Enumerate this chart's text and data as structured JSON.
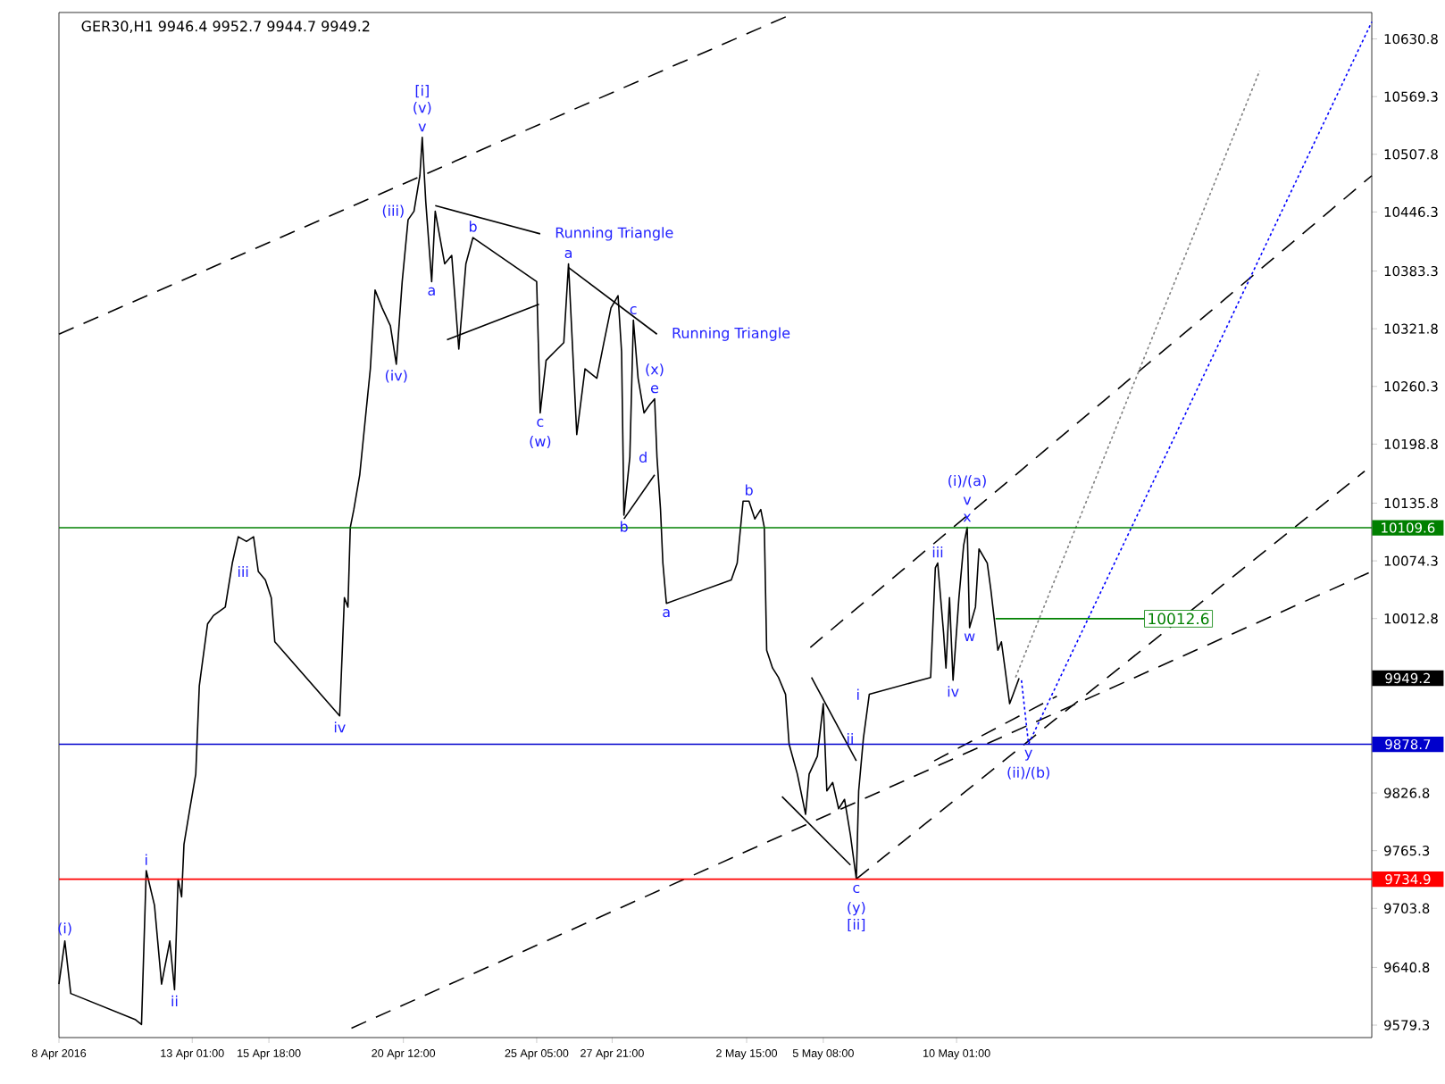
{
  "chart_data": {
    "type": "line",
    "title": "GER30,H1  9946.4 9952.7 9944.7 9949.2",
    "x": [
      "2016-04-08T08:00",
      "2016-04-08T13:00",
      "2016-04-08T18:00",
      "2016-04-11T01:00",
      "2016-04-11T06:00",
      "2016-04-11T10:00",
      "2016-04-11T17:00",
      "2016-04-11T23:00",
      "2016-04-12T06:00",
      "2016-04-12T10:00",
      "2016-04-12T13:00",
      "2016-04-12T16:00",
      "2016-04-12T18:00",
      "2016-04-12T23:00",
      "2016-04-13T04:00",
      "2016-04-13T07:00",
      "2016-04-13T09:00",
      "2016-04-13T14:00",
      "2016-04-13T19:00",
      "2016-04-14T05:00",
      "2016-04-14T11:00",
      "2016-04-14T16:00",
      "2016-04-14T23:00",
      "2016-04-15T05:00",
      "2016-04-15T09:00",
      "2016-04-15T15:00",
      "2016-04-15T20:00",
      "2016-04-15T23:00",
      "2016-04-18T06:00",
      "2016-04-18T10:00",
      "2016-04-18T13:00",
      "2016-04-18T15:00",
      "2016-04-18T18:00",
      "2016-04-18T23:00",
      "2016-04-19T08:00",
      "2016-04-19T12:00",
      "2016-04-19T18:00",
      "2016-04-20T01:00",
      "2016-04-20T06:00",
      "2016-04-20T11:00",
      "2016-04-20T16:00",
      "2016-04-20T21:00",
      "2016-04-21T02:00",
      "2016-04-21T04:00",
      "2016-04-21T07:00",
      "2016-04-21T12:00",
      "2016-04-21T15:00",
      "2016-04-21T23:00",
      "2016-04-22T05:00",
      "2016-04-22T11:00",
      "2016-04-22T17:00",
      "2016-04-22T23:00",
      "2016-04-25T05:00",
      "2016-04-25T08:00",
      "2016-04-25T13:00",
      "2016-04-25T20:00",
      "2016-04-26T04:00",
      "2016-04-26T08:00",
      "2016-04-26T15:00",
      "2016-04-26T22:00",
      "2016-04-27T08:00",
      "2016-04-27T14:00",
      "2016-04-27T20:00",
      "2016-04-28T02:00",
      "2016-04-28T05:00",
      "2016-04-28T07:00",
      "2016-04-28T12:00",
      "2016-04-28T15:00",
      "2016-04-28T19:00",
      "2016-04-29T00:00",
      "2016-04-29T05:00",
      "2016-04-29T09:00",
      "2016-04-29T11:00",
      "2016-04-29T14:00",
      "2016-04-29T16:00",
      "2016-04-29T19:00",
      "2016-05-02T02:00",
      "2016-05-02T07:00",
      "2016-05-02T12:00",
      "2016-05-02T17:00",
      "2016-05-02T22:00",
      "2016-05-03T03:00",
      "2016-05-03T06:00",
      "2016-05-03T08:00",
      "2016-05-03T13:00",
      "2016-05-03T18:00",
      "2016-05-04T00:00",
      "2016-05-04T03:00",
      "2016-05-04T10:00",
      "2016-05-04T17:00",
      "2016-05-04T20:00",
      "2016-05-05T03:00",
      "2016-05-05T08:00",
      "2016-05-05T11:00",
      "2016-05-05T16:00",
      "2016-05-05T21:00",
      "2016-05-06T02:00",
      "2016-05-06T07:00",
      "2016-05-06T12:00",
      "2016-05-06T14:00",
      "2016-05-06T18:00",
      "2016-05-06T23:00",
      "2016-05-09T03:00",
      "2016-05-09T07:00",
      "2016-05-09T09:00",
      "2016-05-09T14:00",
      "2016-05-09T16:00",
      "2016-05-09T19:00",
      "2016-05-09T22:00",
      "2016-05-10T03:00",
      "2016-05-10T07:00",
      "2016-05-10T10:00",
      "2016-05-10T12:00",
      "2016-05-10T17:00",
      "2016-05-10T20:00",
      "2016-05-11T03:00",
      "2016-05-11T06:00",
      "2016-05-11T12:00",
      "2016-05-11T15:00",
      "2016-05-11T18:00",
      "2016-05-11T22:00",
      "2016-05-12T01:00",
      "2016-05-12T06:00"
    ],
    "series": [
      {
        "color": "#000000",
        "values": [
          9623,
          9669,
          9613,
          9585,
          9580,
          9744,
          9707,
          9623,
          9669,
          9617,
          9735,
          9716,
          9772,
          9810,
          9847,
          9941,
          9960,
          10007,
          10016,
          10025,
          10072,
          10100,
          10095,
          10100,
          10063,
          10054,
          10035,
          9988,
          9909,
          10035,
          10025,
          10110,
          10129,
          10166,
          10279,
          10363,
          10344,
          10325,
          10284,
          10372,
          10438,
          10447,
          10485,
          10526,
          10457,
          10372,
          10447,
          10391,
          10400,
          10300,
          10391,
          10419,
          10372,
          10232,
          10288,
          10297,
          10307,
          10391,
          10209,
          10279,
          10269,
          10307,
          10344,
          10357,
          10297,
          10123,
          10185,
          10331,
          10269,
          10232,
          10241,
          10247,
          10185,
          10129,
          10072,
          10029,
          10054,
          10072,
          10138,
          10138,
          10119,
          10129,
          10110,
          9979,
          9960,
          9950,
          9932,
          9879,
          9847,
          9804,
          9847,
          9866,
          9922,
          9829,
          9838,
          9810,
          9820,
          9782,
          9735,
          9829,
          9885,
          9932,
          9950,
          10067,
          10072,
          9997,
          9960,
          10035,
          9947,
          10035,
          10091,
          10110,
          10003,
          10025,
          10087,
          10072,
          10044,
          9979,
          9988,
          9960,
          9922,
          9932,
          9949.2
        ]
      },
      {
        "color": "#000000",
        "line_style": "dashed",
        "x": [
          "2016-04-08T08:00",
          "2016-05-04T05:00"
        ],
        "values": [
          10316,
          10657
        ]
      },
      {
        "color": "#000000",
        "line_style": "dashed",
        "x": [
          "2016-04-18T16:00",
          "2016-05-24T17:00"
        ],
        "values": [
          9576,
          10063
        ]
      },
      {
        "color": "#000000",
        "line_style": "dashed",
        "x": [
          "2016-05-04T21:00",
          "2016-05-24T17:00"
        ],
        "values": [
          9982,
          10485
        ]
      },
      {
        "color": "#000000",
        "line_style": "dashed",
        "x": [
          "2016-05-06T12:00",
          "2016-05-24T11:00"
        ],
        "values": [
          9735,
          10170
        ]
      },
      {
        "color": "#000000",
        "line_style": "dashed",
        "x": [
          "2016-05-09T06:00",
          "2016-05-13T14:00"
        ],
        "values": [
          9861,
          9930
        ]
      },
      {
        "color": "#808080",
        "line_style": "dotted",
        "x": [
          "2016-05-12T03:00",
          "2016-05-20T18:00"
        ],
        "values": [
          9950,
          10597
        ]
      },
      {
        "color": "#0000ff",
        "line_style": "dotted",
        "x": [
          "2016-05-12T08:00",
          "2016-05-12T14:00",
          "2016-05-24T17:00"
        ],
        "values": [
          9947,
          9879,
          10649
        ]
      },
      {
        "color": "#000000",
        "x": [
          "2016-04-21T15:00",
          "2016-04-25T08:00"
        ],
        "values": [
          10453,
          10423
        ]
      },
      {
        "color": "#000000",
        "x": [
          "2016-04-22T01:00",
          "2016-04-25T07:00"
        ],
        "values": [
          10310,
          10348
        ]
      },
      {
        "color": "#000000",
        "x": [
          "2016-04-26T08:00",
          "2016-04-29T11:00"
        ],
        "values": [
          10387,
          10316
        ]
      },
      {
        "color": "#000000",
        "x": [
          "2016-04-28T07:00",
          "2016-04-29T09:00"
        ],
        "values": [
          10119,
          10166
        ]
      },
      {
        "color": "#000000",
        "x": [
          "2016-05-04T22:00",
          "2016-05-06T12:00"
        ],
        "values": [
          9950,
          9861
        ]
      },
      {
        "color": "#000000",
        "x": [
          "2016-05-03T21:00",
          "2016-05-06T07:00"
        ],
        "values": [
          9823,
          9750
        ]
      },
      {
        "color": "#008000",
        "x": [
          "2016-05-11T10:00",
          "2016-05-16T16:00"
        ],
        "values": [
          10012.6,
          10012.6
        ],
        "value_labels": [
          null,
          "10012.6"
        ]
      }
    ],
    "xlim": [
      "2016-04-08T08:00",
      "2016-05-24T17:00"
    ],
    "ylim": [
      9566,
      10659
    ],
    "xticks": [
      {
        "value": "2016-04-08T08:00",
        "label": "8 Apr 2016"
      },
      {
        "value": "2016-04-13T01:00",
        "label": "13 Apr 01:00"
      },
      {
        "value": "2016-04-15T18:00",
        "label": "15 Apr 18:00"
      },
      {
        "value": "2016-04-20T12:00",
        "label": "20 Apr 12:00"
      },
      {
        "value": "2016-04-25T05:00",
        "label": "25 Apr 05:00"
      },
      {
        "value": "2016-04-27T21:00",
        "label": "27 Apr 21:00"
      },
      {
        "value": "2016-05-02T15:00",
        "label": "2 May 15:00"
      },
      {
        "value": "2016-05-05T08:00",
        "label": "5 May 08:00"
      },
      {
        "value": "2016-05-10T01:00",
        "label": "10 May 01:00"
      }
    ],
    "yticks": [
      10630.8,
      10569.3,
      10507.8,
      10446.3,
      10383.3,
      10321.8,
      10260.3,
      10198.8,
      10135.8,
      10074.3,
      10012.8,
      9826.8,
      9765.3,
      9703.8,
      9640.8,
      9579.3
    ],
    "ref_lines": [
      {
        "axis": "y",
        "value": 10109.6,
        "label": "10109.6",
        "color": "#008000"
      },
      {
        "axis": "y",
        "value": 9878.7,
        "label": "9878.7",
        "color": "#0000cc"
      },
      {
        "axis": "y",
        "value": 9734.9,
        "label": "9734.9",
        "color": "#ff0000"
      }
    ],
    "annotations": [
      "9949.2",
      {
        "text": "v",
        "x": "2016-04-21T04:00",
        "y": 10526
      },
      {
        "text": "(v)",
        "x": "2016-04-21T04:00",
        "y": 10526
      },
      {
        "text": "[i]",
        "x": "2016-04-21T04:00",
        "y": 10526
      },
      {
        "text": "(iii)",
        "x": "2016-04-20T21:00",
        "y": 10447
      },
      {
        "text": "b",
        "x": "2016-04-22T23:00",
        "y": 10419
      },
      {
        "text": "Running Triangle",
        "x": "2016-04-25T08:00",
        "y": 10423
      },
      {
        "text": "a",
        "x": "2016-04-26T08:00",
        "y": 10391
      },
      {
        "text": "c",
        "x": "2016-04-28T15:00",
        "y": 10331
      },
      {
        "text": "Running Triangle",
        "x": "2016-04-29T11:00",
        "y": 10316
      },
      {
        "text": "e",
        "x": "2016-04-29T09:00",
        "y": 10247
      },
      {
        "text": "(x)",
        "x": "2016-04-29T09:00",
        "y": 10247
      },
      {
        "text": "a",
        "x": "2016-04-21T12:00",
        "y": 10372
      },
      {
        "text": "(iv)",
        "x": "2016-04-20T06:00",
        "y": 10284
      },
      {
        "text": "c",
        "x": "2016-04-25T08:00",
        "y": 10232
      },
      {
        "text": "(w)",
        "x": "2016-04-25T08:00",
        "y": 10232
      },
      {
        "text": "iii",
        "x": "2016-04-15T09:00",
        "y": 10063
      },
      {
        "text": "b",
        "x": "2016-05-02T17:00",
        "y": 10138
      },
      {
        "text": "d",
        "x": "2016-04-29T11:00",
        "y": 10185
      },
      {
        "text": "b",
        "x": "2016-04-28T07:00",
        "y": 10123
      },
      {
        "text": "a",
        "x": "2016-04-29T19:00",
        "y": 10029
      },
      {
        "text": "x",
        "x": "2016-05-10T10:00",
        "y": 10110
      },
      {
        "text": "v",
        "x": "2016-05-10T10:00",
        "y": 10110
      },
      {
        "text": "(i)/(a)",
        "x": "2016-05-10T10:00",
        "y": 10110
      },
      {
        "text": "iii",
        "x": "2016-05-09T09:00",
        "y": 10072
      },
      {
        "text": "w",
        "x": "2016-05-10T12:00",
        "y": 10003
      },
      {
        "text": "i",
        "x": "2016-05-06T23:00",
        "y": 9932
      },
      {
        "text": "iv",
        "x": "2016-05-09T22:00",
        "y": 9947
      },
      {
        "text": "ii",
        "x": "2016-05-06T18:00",
        "y": 9885
      },
      {
        "text": "y",
        "x": "2016-05-12T14:00",
        "y": 9879
      },
      {
        "text": "(ii)/(b)",
        "x": "2016-05-12T14:00",
        "y": 9879
      },
      {
        "text": "iv",
        "x": "2016-04-18T06:00",
        "y": 9909
      },
      {
        "text": "i",
        "x": "2016-04-11T10:00",
        "y": 9744
      },
      {
        "text": "(i)",
        "x": "2016-04-08T13:00",
        "y": 9669
      },
      {
        "text": "ii",
        "x": "2016-04-12T10:00",
        "y": 9617
      },
      {
        "text": "c",
        "x": "2016-05-06T12:00",
        "y": 9735
      },
      {
        "text": "(y)",
        "x": "2016-05-06T12:00",
        "y": 9735
      },
      {
        "text": "[ii]",
        "x": "2016-05-06T12:00",
        "y": 9735
      }
    ]
  }
}
